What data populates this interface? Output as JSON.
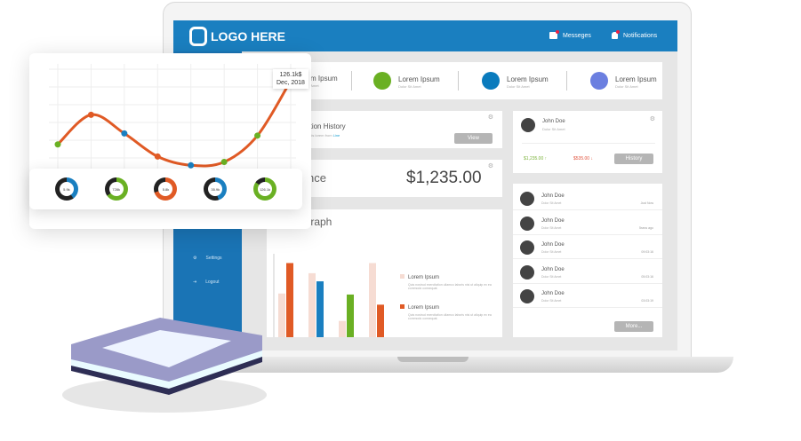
{
  "header": {
    "logo": "LOGO HERE",
    "messages": "Messeges",
    "notifications": "Notifications"
  },
  "sidebar": {
    "items": [
      {
        "label": "Settings",
        "icon": "gear-icon"
      },
      {
        "label": "Logout",
        "icon": "logout-icon"
      }
    ]
  },
  "stats": [
    {
      "title": "Lorem Ipsum",
      "sub": "Dolor Sit Amet",
      "color": "#1a7fc0"
    },
    {
      "title": "Lorem Ipsum",
      "sub": "Dolor Sit Amet",
      "color": "#6ab023"
    },
    {
      "title": "Lorem Ipsum",
      "sub": "Dolor Sit Amet",
      "color": "#0a7bbd"
    },
    {
      "title": "Lorem Ipsum",
      "sub": "Dolor Sit Amet",
      "color": "#6b7fe0"
    }
  ],
  "history": {
    "title": "Transaction History",
    "sub": "Ullamcorper mattis lorem from",
    "link": "Line",
    "view": "View"
  },
  "balance": {
    "label": "Balance",
    "amount": "$1,235.00"
  },
  "graph": {
    "title": "Graph",
    "legend": [
      {
        "label": "Lorem Ipsum",
        "desc": "Quis nostrud exercitation ullamco laboris nisi ut aliquip ex ea commodo consequat.",
        "color": "#f6dcd3"
      },
      {
        "label": "Lorem Ipsum",
        "desc": "Quis nostrud exercitation ullamco laboris nisi ut aliquip ex ea commodo consequat.",
        "color": "#e05a25"
      }
    ]
  },
  "profile": {
    "name": "John Doe",
    "sub": "Dolor Sit Amet",
    "up": "$1,235.00",
    "down": "$535.00",
    "history": "History"
  },
  "list": {
    "rows": [
      {
        "name": "John Doe",
        "sub": "Dolor Sit Amet",
        "time": "Just Now"
      },
      {
        "name": "John Doe",
        "sub": "Dolor Sit Amet",
        "time": "5secs ago"
      },
      {
        "name": "John Doe",
        "sub": "Dolor Sit Amet",
        "time": "09:03:16"
      },
      {
        "name": "John Doe",
        "sub": "Dolor Sit Amet",
        "time": "05:03:16"
      },
      {
        "name": "John Doe",
        "sub": "Dolor Sit Amet",
        "time": "03:03:19"
      }
    ],
    "more": "More..."
  },
  "overlay": {
    "tooltip_value": "126.1k$",
    "tooltip_date": "Dec, 2018",
    "donuts": [
      {
        "label": "5.9k",
        "main": "#1a7fc0",
        "rest": "#222",
        "fraction": 0.4
      },
      {
        "label": "728k",
        "main": "#6ab023",
        "rest": "#222",
        "fraction": 0.65
      },
      {
        "label": "5.8k",
        "main": "#e05a25",
        "rest": "#222",
        "fraction": 0.7
      },
      {
        "label": "35.9k",
        "main": "#1a7fc0",
        "rest": "#222",
        "fraction": 0.45
      },
      {
        "label": "126.1k",
        "main": "#6ab023",
        "rest": "#222",
        "fraction": 0.85
      }
    ]
  },
  "chart_data": [
    {
      "type": "line",
      "ylim": [
        0,
        140
      ],
      "grid": true,
      "values": [
        34.7,
        77.2,
        50.4,
        17.3,
        4.7,
        9.5,
        47.3,
        126.1
      ],
      "point_colors": [
        "#6ab023",
        "#e05a25",
        "#1a7fc0",
        "#e05a25",
        "#1a7fc0",
        "#6ab023",
        "#6ab023",
        "#1a7fc0"
      ],
      "line_color": "#e05a25"
    },
    {
      "type": "bar",
      "ylim": [
        0,
        9
      ],
      "series": [
        {
          "values": [
            4.3,
            6.3,
            1.6,
            7.3
          ],
          "color": "#f6dcd3"
        },
        {
          "values": [
            7.3,
            5.5,
            4.2,
            3.2
          ],
          "colors": [
            "#e05a25",
            "#1a7fc0",
            "#6ab023",
            "#e05a25"
          ]
        }
      ]
    }
  ]
}
